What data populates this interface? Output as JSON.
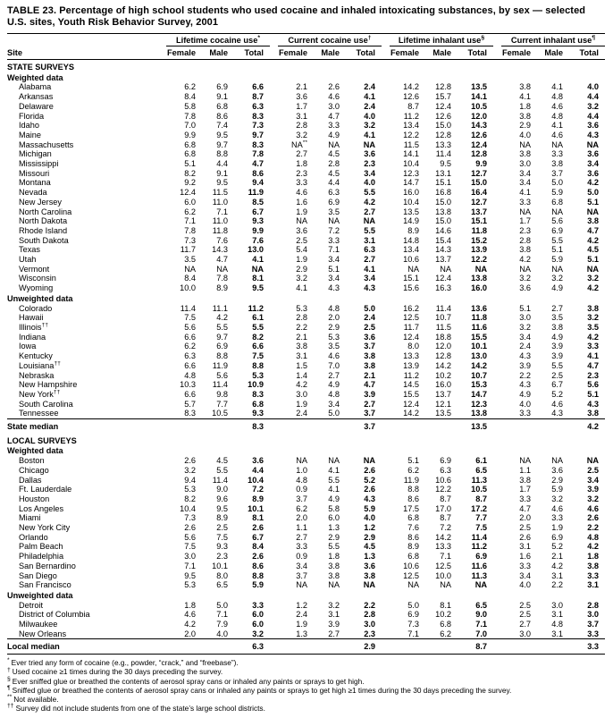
{
  "page_title": "TABLE 23. Percentage of high school students who used cocaine and inhaled intoxicating substances, by sex — selected U.S. sites, Youth Risk Behavior Survey, 2001",
  "table": {
    "site_header": "Site",
    "sub_headers": [
      "Female",
      "Male",
      "Total"
    ],
    "groups": [
      {
        "label": "Lifetime cocaine use",
        "marker": "*"
      },
      {
        "label": "Current cocaine use",
        "marker": "†"
      },
      {
        "label": "Lifetime inhalant use",
        "marker": "§"
      },
      {
        "label": "Current inhalant use",
        "marker": "¶"
      }
    ],
    "rows": [
      {
        "t": "h",
        "label": "STATE SURVEYS"
      },
      {
        "t": "h2",
        "label": "Weighted data"
      },
      {
        "t": "d",
        "site": "Alabama",
        "v": [
          "6.2",
          "6.9",
          "6.6",
          "2.1",
          "2.6",
          "2.4",
          "14.2",
          "12.8",
          "13.5",
          "3.8",
          "4.1",
          "4.0"
        ]
      },
      {
        "t": "d",
        "site": "Arkansas",
        "v": [
          "8.4",
          "9.1",
          "8.7",
          "3.6",
          "4.6",
          "4.1",
          "12.6",
          "15.7",
          "14.1",
          "4.1",
          "4.8",
          "4.4"
        ]
      },
      {
        "t": "d",
        "site": "Delaware",
        "v": [
          "5.8",
          "6.8",
          "6.3",
          "1.7",
          "3.0",
          "2.4",
          "8.7",
          "12.4",
          "10.5",
          "1.8",
          "4.6",
          "3.2"
        ]
      },
      {
        "t": "d",
        "site": "Florida",
        "v": [
          "7.8",
          "8.6",
          "8.3",
          "3.1",
          "4.7",
          "4.0",
          "11.2",
          "12.6",
          "12.0",
          "3.8",
          "4.8",
          "4.4"
        ]
      },
      {
        "t": "d",
        "site": "Idaho",
        "v": [
          "7.0",
          "7.4",
          "7.3",
          "2.8",
          "3.3",
          "3.2",
          "13.4",
          "15.0",
          "14.3",
          "2.9",
          "4.1",
          "3.6"
        ]
      },
      {
        "t": "d",
        "site": "Maine",
        "v": [
          "9.9",
          "9.5",
          "9.7",
          "3.2",
          "4.9",
          "4.1",
          "12.2",
          "12.8",
          "12.6",
          "4.0",
          "4.6",
          "4.3"
        ]
      },
      {
        "t": "d",
        "site": "Massachusetts",
        "v": [
          "6.8",
          "9.7",
          "8.3",
          "NA**",
          "NA",
          "NA",
          "11.5",
          "13.3",
          "12.4",
          "NA",
          "NA",
          "NA"
        ]
      },
      {
        "t": "d",
        "site": "Michigan",
        "v": [
          "6.8",
          "8.8",
          "7.8",
          "2.7",
          "4.5",
          "3.6",
          "14.1",
          "11.4",
          "12.8",
          "3.8",
          "3.3",
          "3.6"
        ]
      },
      {
        "t": "d",
        "site": "Mississippi",
        "v": [
          "5.1",
          "4.4",
          "4.7",
          "1.8",
          "2.8",
          "2.3",
          "10.4",
          "9.5",
          "9.9",
          "3.0",
          "3.8",
          "3.4"
        ]
      },
      {
        "t": "d",
        "site": "Missouri",
        "v": [
          "8.2",
          "9.1",
          "8.6",
          "2.3",
          "4.5",
          "3.4",
          "12.3",
          "13.1",
          "12.7",
          "3.4",
          "3.7",
          "3.6"
        ]
      },
      {
        "t": "d",
        "site": "Montana",
        "v": [
          "9.2",
          "9.5",
          "9.4",
          "3.3",
          "4.4",
          "4.0",
          "14.7",
          "15.1",
          "15.0",
          "3.4",
          "5.0",
          "4.2"
        ]
      },
      {
        "t": "d",
        "site": "Nevada",
        "v": [
          "12.4",
          "11.5",
          "11.9",
          "4.6",
          "6.3",
          "5.5",
          "16.0",
          "16.8",
          "16.4",
          "4.1",
          "5.9",
          "5.0"
        ]
      },
      {
        "t": "d",
        "site": "New Jersey",
        "v": [
          "6.0",
          "11.0",
          "8.5",
          "1.6",
          "6.9",
          "4.2",
          "10.4",
          "15.0",
          "12.7",
          "3.3",
          "6.8",
          "5.1"
        ]
      },
      {
        "t": "d",
        "site": "North Carolina",
        "v": [
          "6.2",
          "7.1",
          "6.7",
          "1.9",
          "3.5",
          "2.7",
          "13.5",
          "13.8",
          "13.7",
          "NA",
          "NA",
          "NA"
        ]
      },
      {
        "t": "d",
        "site": "North Dakota",
        "v": [
          "7.1",
          "11.0",
          "9.3",
          "NA",
          "NA",
          "NA",
          "14.9",
          "15.0",
          "15.1",
          "1.7",
          "5.6",
          "3.8"
        ]
      },
      {
        "t": "d",
        "site": "Rhode Island",
        "v": [
          "7.8",
          "11.8",
          "9.9",
          "3.6",
          "7.2",
          "5.5",
          "8.9",
          "14.6",
          "11.8",
          "2.3",
          "6.9",
          "4.7"
        ]
      },
      {
        "t": "d",
        "site": "South Dakota",
        "v": [
          "7.3",
          "7.6",
          "7.6",
          "2.5",
          "3.3",
          "3.1",
          "14.8",
          "15.4",
          "15.2",
          "2.8",
          "5.5",
          "4.2"
        ]
      },
      {
        "t": "d",
        "site": "Texas",
        "v": [
          "11.7",
          "14.3",
          "13.0",
          "5.4",
          "7.1",
          "6.3",
          "13.4",
          "14.3",
          "13.9",
          "3.8",
          "5.1",
          "4.5"
        ]
      },
      {
        "t": "d",
        "site": "Utah",
        "v": [
          "3.5",
          "4.7",
          "4.1",
          "1.9",
          "3.4",
          "2.7",
          "10.6",
          "13.7",
          "12.2",
          "4.2",
          "5.9",
          "5.1"
        ]
      },
      {
        "t": "d",
        "site": "Vermont",
        "v": [
          "NA",
          "NA",
          "NA",
          "2.9",
          "5.1",
          "4.1",
          "NA",
          "NA",
          "NA",
          "NA",
          "NA",
          "NA"
        ]
      },
      {
        "t": "d",
        "site": "Wisconsin",
        "v": [
          "8.4",
          "7.8",
          "8.1",
          "3.2",
          "3.4",
          "3.4",
          "15.1",
          "12.4",
          "13.8",
          "3.2",
          "3.2",
          "3.2"
        ]
      },
      {
        "t": "d",
        "site": "Wyoming",
        "v": [
          "10.0",
          "8.9",
          "9.5",
          "4.1",
          "4.3",
          "4.3",
          "15.6",
          "16.3",
          "16.0",
          "3.6",
          "4.9",
          "4.2"
        ]
      },
      {
        "t": "h2",
        "label": "Unweighted data"
      },
      {
        "t": "d",
        "site": "Colorado",
        "v": [
          "11.4",
          "11.1",
          "11.2",
          "5.3",
          "4.8",
          "5.0",
          "16.2",
          "11.4",
          "13.6",
          "5.1",
          "2.7",
          "3.8"
        ]
      },
      {
        "t": "d",
        "site": "Hawaii",
        "v": [
          "7.5",
          "4.2",
          "6.1",
          "2.8",
          "2.0",
          "2.4",
          "12.5",
          "10.7",
          "11.8",
          "3.0",
          "3.5",
          "3.2"
        ]
      },
      {
        "t": "d",
        "site": "Illinois",
        "sup": "††",
        "v": [
          "5.6",
          "5.5",
          "5.5",
          "2.2",
          "2.9",
          "2.5",
          "11.7",
          "11.5",
          "11.6",
          "3.2",
          "3.8",
          "3.5"
        ]
      },
      {
        "t": "d",
        "site": "Indiana",
        "v": [
          "6.6",
          "9.7",
          "8.2",
          "2.1",
          "5.3",
          "3.6",
          "12.4",
          "18.8",
          "15.5",
          "3.4",
          "4.9",
          "4.2"
        ]
      },
      {
        "t": "d",
        "site": "Iowa",
        "v": [
          "6.2",
          "6.9",
          "6.6",
          "3.8",
          "3.5",
          "3.7",
          "8.0",
          "12.0",
          "10.1",
          "2.4",
          "3.9",
          "3.3"
        ]
      },
      {
        "t": "d",
        "site": "Kentucky",
        "v": [
          "6.3",
          "8.8",
          "7.5",
          "3.1",
          "4.6",
          "3.8",
          "13.3",
          "12.8",
          "13.0",
          "4.3",
          "3.9",
          "4.1"
        ]
      },
      {
        "t": "d",
        "site": "Louisiana",
        "sup": "††",
        "v": [
          "6.6",
          "11.9",
          "8.8",
          "1.5",
          "7.0",
          "3.8",
          "13.9",
          "14.2",
          "14.2",
          "3.9",
          "5.5",
          "4.7"
        ]
      },
      {
        "t": "d",
        "site": "Nebraska",
        "v": [
          "4.8",
          "5.6",
          "5.3",
          "1.4",
          "2.7",
          "2.1",
          "11.2",
          "10.2",
          "10.7",
          "2.2",
          "2.5",
          "2.3"
        ]
      },
      {
        "t": "d",
        "site": "New Hampshire",
        "v": [
          "10.3",
          "11.4",
          "10.9",
          "4.2",
          "4.9",
          "4.7",
          "14.5",
          "16.0",
          "15.3",
          "4.3",
          "6.7",
          "5.6"
        ]
      },
      {
        "t": "d",
        "site": "New York",
        "sup": "††",
        "v": [
          "6.6",
          "9.8",
          "8.3",
          "3.0",
          "4.8",
          "3.9",
          "15.5",
          "13.7",
          "14.7",
          "4.9",
          "5.2",
          "5.1"
        ]
      },
      {
        "t": "d",
        "site": "South Carolina",
        "v": [
          "5.7",
          "7.7",
          "6.8",
          "1.9",
          "3.4",
          "2.7",
          "12.4",
          "12.1",
          "12.3",
          "4.0",
          "4.6",
          "4.3"
        ]
      },
      {
        "t": "d",
        "site": "Tennessee",
        "v": [
          "8.3",
          "10.5",
          "9.3",
          "2.4",
          "5.0",
          "3.7",
          "14.2",
          "13.5",
          "13.8",
          "3.3",
          "4.3",
          "3.8"
        ]
      },
      {
        "t": "m",
        "site": "State median",
        "v": [
          "8.3",
          "3.7",
          "13.5",
          "4.2"
        ]
      },
      {
        "t": "h",
        "label": "LOCAL SURVEYS"
      },
      {
        "t": "h2",
        "label": "Weighted data"
      },
      {
        "t": "d",
        "site": "Boston",
        "v": [
          "2.6",
          "4.5",
          "3.6",
          "NA",
          "NA",
          "NA",
          "5.1",
          "6.9",
          "6.1",
          "NA",
          "NA",
          "NA"
        ]
      },
      {
        "t": "d",
        "site": "Chicago",
        "v": [
          "3.2",
          "5.5",
          "4.4",
          "1.0",
          "4.1",
          "2.6",
          "6.2",
          "6.3",
          "6.5",
          "1.1",
          "3.6",
          "2.5"
        ]
      },
      {
        "t": "d",
        "site": "Dallas",
        "v": [
          "9.4",
          "11.4",
          "10.4",
          "4.8",
          "5.5",
          "5.2",
          "11.9",
          "10.6",
          "11.3",
          "3.8",
          "2.9",
          "3.4"
        ]
      },
      {
        "t": "d",
        "site": "Ft. Lauderdale",
        "v": [
          "5.3",
          "9.0",
          "7.2",
          "0.9",
          "4.1",
          "2.6",
          "8.8",
          "12.2",
          "10.5",
          "1.7",
          "5.9",
          "3.9"
        ]
      },
      {
        "t": "d",
        "site": "Houston",
        "v": [
          "8.2",
          "9.6",
          "8.9",
          "3.7",
          "4.9",
          "4.3",
          "8.6",
          "8.7",
          "8.7",
          "3.3",
          "3.2",
          "3.2"
        ]
      },
      {
        "t": "d",
        "site": "Los Angeles",
        "v": [
          "10.4",
          "9.5",
          "10.1",
          "6.2",
          "5.8",
          "5.9",
          "17.5",
          "17.0",
          "17.2",
          "4.7",
          "4.6",
          "4.6"
        ]
      },
      {
        "t": "d",
        "site": "Miami",
        "v": [
          "7.3",
          "8.9",
          "8.1",
          "2.0",
          "6.0",
          "4.0",
          "6.8",
          "8.7",
          "7.7",
          "2.0",
          "3.3",
          "2.6"
        ]
      },
      {
        "t": "d",
        "site": "New York City",
        "v": [
          "2.6",
          "2.5",
          "2.6",
          "1.1",
          "1.3",
          "1.2",
          "7.6",
          "7.2",
          "7.5",
          "2.5",
          "1.9",
          "2.2"
        ]
      },
      {
        "t": "d",
        "site": "Orlando",
        "v": [
          "5.6",
          "7.5",
          "6.7",
          "2.7",
          "2.9",
          "2.9",
          "8.6",
          "14.2",
          "11.4",
          "2.6",
          "6.9",
          "4.8"
        ]
      },
      {
        "t": "d",
        "site": "Palm Beach",
        "v": [
          "7.5",
          "9.3",
          "8.4",
          "3.3",
          "5.5",
          "4.5",
          "8.9",
          "13.3",
          "11.2",
          "3.1",
          "5.2",
          "4.2"
        ]
      },
      {
        "t": "d",
        "site": "Philadelphia",
        "v": [
          "3.0",
          "2.3",
          "2.6",
          "0.9",
          "1.8",
          "1.3",
          "6.8",
          "7.1",
          "6.9",
          "1.6",
          "2.1",
          "1.8"
        ]
      },
      {
        "t": "d",
        "site": "San Bernardino",
        "v": [
          "7.1",
          "10.1",
          "8.6",
          "3.4",
          "3.8",
          "3.6",
          "10.6",
          "12.5",
          "11.6",
          "3.3",
          "4.2",
          "3.8"
        ]
      },
      {
        "t": "d",
        "site": "San Diego",
        "v": [
          "9.5",
          "8.0",
          "8.8",
          "3.7",
          "3.8",
          "3.8",
          "12.5",
          "10.0",
          "11.3",
          "3.4",
          "3.1",
          "3.3"
        ]
      },
      {
        "t": "d",
        "site": "San Francisco",
        "v": [
          "5.3",
          "6.5",
          "5.9",
          "NA",
          "NA",
          "NA",
          "NA",
          "NA",
          "NA",
          "4.0",
          "2.2",
          "3.1"
        ]
      },
      {
        "t": "h2",
        "label": "Unweighted data"
      },
      {
        "t": "d",
        "site": "Detroit",
        "v": [
          "1.8",
          "5.0",
          "3.3",
          "1.2",
          "3.2",
          "2.2",
          "5.0",
          "8.1",
          "6.5",
          "2.5",
          "3.0",
          "2.8"
        ]
      },
      {
        "t": "d",
        "site": "District of Columbia",
        "v": [
          "4.6",
          "7.1",
          "6.0",
          "2.4",
          "3.1",
          "2.8",
          "6.9",
          "10.2",
          "9.0",
          "2.5",
          "3.1",
          "3.0"
        ]
      },
      {
        "t": "d",
        "site": "Milwaukee",
        "v": [
          "4.2",
          "7.9",
          "6.0",
          "1.9",
          "3.9",
          "3.0",
          "7.3",
          "6.8",
          "7.1",
          "2.7",
          "4.8",
          "3.7"
        ]
      },
      {
        "t": "d",
        "site": "New Orleans",
        "v": [
          "2.0",
          "4.0",
          "3.2",
          "1.3",
          "2.7",
          "2.3",
          "7.1",
          "6.2",
          "7.0",
          "3.0",
          "3.1",
          "3.3"
        ]
      },
      {
        "t": "m",
        "site": "Local median",
        "last": true,
        "v": [
          "6.3",
          "2.9",
          "8.7",
          "3.3"
        ]
      }
    ]
  },
  "footnotes": [
    {
      "marker": "*",
      "text": "Ever tried any form of cocaine (e.g., powder, “crack,” and “freebase”)."
    },
    {
      "marker": "†",
      "text": "Used cocaine ≥1 times during the 30 days preceding the survey."
    },
    {
      "marker": "§",
      "text": "Ever sniffed glue or breathed the contents of aerosol spray cans or inhaled any paints or sprays to get high."
    },
    {
      "marker": "¶",
      "text": "Sniffed glue or breathed the contents of aerosol spray cans or inhaled any paints or sprays to get high ≥1 times during the 30 days preceding the survey."
    },
    {
      "marker": "**",
      "text": "Not available."
    },
    {
      "marker": "††",
      "text": "Survey did not include students from one of the state’s large school districts."
    }
  ]
}
